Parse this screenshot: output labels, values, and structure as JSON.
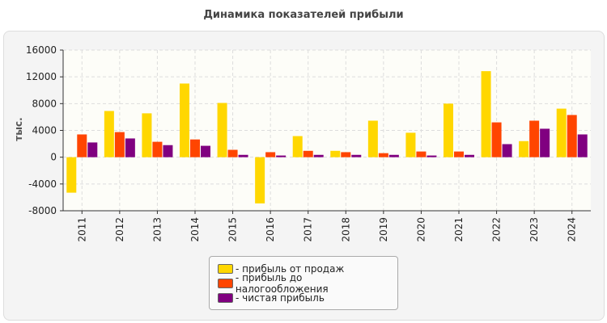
{
  "chart_data": {
    "type": "bar",
    "title": "Динамика показателей прибыли",
    "ylabel": "тыс.",
    "ylim": [
      -8000,
      16000
    ],
    "yticks": [
      -8000,
      -4000,
      0,
      4000,
      8000,
      12000,
      16000
    ],
    "grid": true,
    "legend_position": "bottom",
    "categories": [
      "2011",
      "2012",
      "2013",
      "2014",
      "2015",
      "2016",
      "2017",
      "2018",
      "2019",
      "2020",
      "2021",
      "2022",
      "2023",
      "2024"
    ],
    "series": [
      {
        "name": "- прибыль от продаж",
        "color": "#ffd700",
        "values": [
          -5300,
          6900,
          6550,
          11000,
          8100,
          -6900,
          3150,
          950,
          5450,
          3650,
          8000,
          12850,
          2400,
          7250
        ]
      },
      {
        "name": "- прибыль до налогообложения",
        "color": "#ff4500",
        "values": [
          3400,
          3750,
          2300,
          2650,
          1100,
          750,
          950,
          750,
          600,
          850,
          850,
          5200,
          5450,
          6300
        ]
      },
      {
        "name": "- чистая прибыль",
        "color": "#800080",
        "values": [
          2200,
          2800,
          1800,
          1700,
          350,
          250,
          350,
          350,
          350,
          250,
          350,
          1950,
          4250,
          3400
        ]
      }
    ]
  }
}
